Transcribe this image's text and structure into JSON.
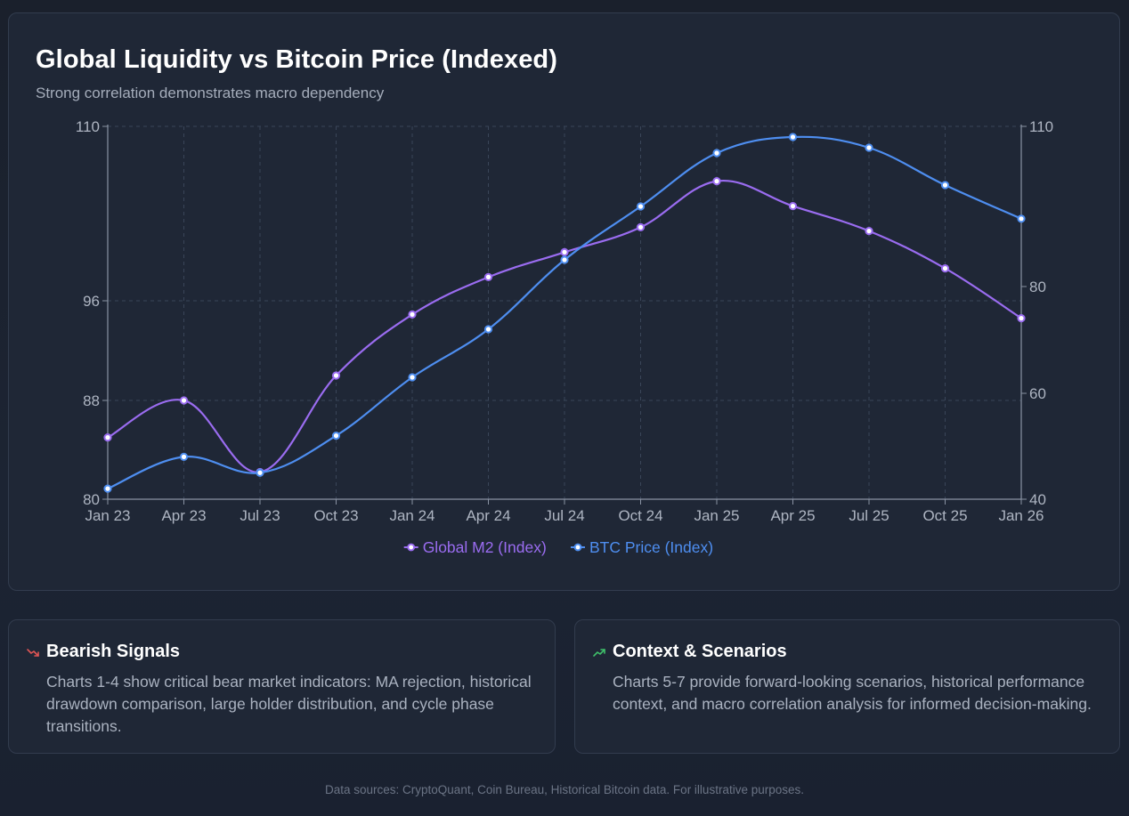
{
  "header": {
    "title": "Global Liquidity vs Bitcoin Price (Indexed)",
    "subtitle": "Strong correlation demonstrates macro dependency"
  },
  "colors": {
    "m2": "#9a6cf0",
    "btc": "#4e8ef0",
    "bearish_icon": "#e05555",
    "context_icon": "#3fbf6a"
  },
  "chart_data": {
    "type": "line",
    "categories": [
      "Jan 23",
      "Apr 23",
      "Jul 23",
      "Oct 23",
      "Jan 24",
      "Apr 24",
      "Jul 24",
      "Oct 24",
      "Jan 25",
      "Apr 25",
      "Jul 25",
      "Oct 25",
      "Jan 26"
    ],
    "series": [
      {
        "name": "Global M2 (Index)",
        "axis": "left",
        "values": [
          85,
          88,
          82.2,
          90,
          94.9,
          97.9,
          99.9,
          101.9,
          105.6,
          103.6,
          101.6,
          98.6,
          94.6
        ]
      },
      {
        "name": "BTC Price (Index)",
        "axis": "right",
        "values": [
          42,
          48,
          45,
          52,
          63,
          72,
          85,
          95,
          105,
          108,
          106,
          99,
          92.7
        ]
      }
    ],
    "left_axis": {
      "ticks": [
        "110",
        "96",
        "88",
        "80"
      ],
      "tick_values": [
        110,
        96,
        88,
        80
      ],
      "range": [
        80,
        110
      ]
    },
    "right_axis": {
      "ticks": [
        "110",
        "80",
        "60",
        "40"
      ],
      "tick_values": [
        110,
        80,
        60,
        40
      ],
      "range": [
        40,
        110
      ]
    },
    "grid": true,
    "legend_position": "bottom"
  },
  "cards": [
    {
      "title": "Bearish Signals",
      "icon": "trend-down-icon",
      "text": "Charts 1-4 show critical bear market indicators: MA rejection, historical drawdown comparison, large holder distribution, and cycle phase transitions."
    },
    {
      "title": "Context & Scenarios",
      "icon": "trend-up-icon",
      "text": "Charts 5-7 provide forward-looking scenarios, historical performance context, and macro correlation analysis for informed decision-making."
    }
  ],
  "footer": {
    "note": "Data sources: CryptoQuant, Coin Bureau, Historical Bitcoin data. For illustrative purposes."
  }
}
